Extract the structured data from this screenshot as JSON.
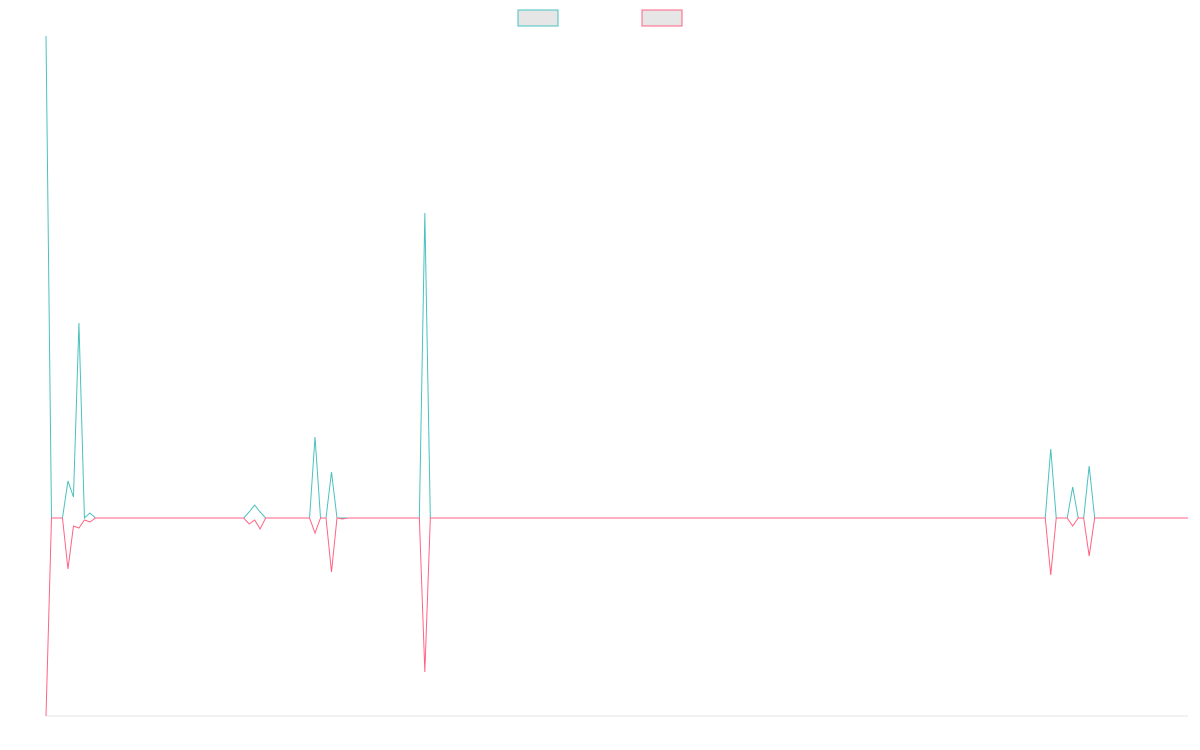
{
  "chart_data": {
    "type": "line",
    "x": [
      0,
      1,
      3,
      4,
      5,
      6,
      7,
      8,
      9,
      36,
      37,
      38,
      39,
      40,
      48,
      49,
      50,
      51,
      52,
      53,
      54,
      55,
      68,
      69,
      70,
      182,
      183,
      184,
      186,
      187,
      188,
      189,
      190,
      191,
      208
    ],
    "xlim": [
      0,
      208
    ],
    "ylim": [
      -198,
      482
    ],
    "legend": "top",
    "series": [
      {
        "color": "#4bc0c0",
        "values": [
          482,
          0,
          0,
          37,
          21,
          195,
          0,
          5,
          0,
          0,
          6,
          13,
          6,
          0,
          0,
          81,
          0,
          0,
          46,
          0,
          0,
          0,
          0,
          305,
          0,
          0,
          69,
          0,
          0,
          31,
          0,
          0,
          52,
          0,
          0
        ]
      },
      {
        "color": "#ff6384",
        "values": [
          -198,
          0,
          0,
          -51,
          -8,
          -10,
          -2,
          -4,
          0,
          0,
          -6,
          -2,
          -11,
          0,
          0,
          -15,
          0,
          0,
          -54,
          0,
          -1,
          0,
          0,
          -154,
          0,
          0,
          -57,
          0,
          0,
          -8,
          0,
          0,
          -38,
          0,
          0
        ]
      }
    ]
  }
}
